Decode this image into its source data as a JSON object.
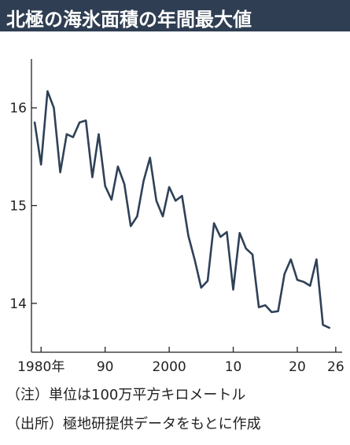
{
  "title": "北極の海氷面積の年間最大値",
  "chart_data": {
    "type": "line",
    "title": "北極の海氷面積の年間最大値",
    "xlabel": "",
    "ylabel": "",
    "x_tick_labels": [
      "1980年",
      "90",
      "2000",
      "10",
      "20",
      "26"
    ],
    "x_ticks": [
      1980,
      1990,
      2000,
      2010,
      2020,
      2026
    ],
    "y_ticks": [
      14,
      15,
      16
    ],
    "xlim": [
      1978.5,
      2027
    ],
    "ylim": [
      13.5,
      16.5
    ],
    "color": "#2f4157",
    "series": [
      {
        "name": "",
        "x": [
          1979,
          1980,
          1981,
          1982,
          1983,
          1984,
          1985,
          1986,
          1987,
          1988,
          1989,
          1990,
          1991,
          1992,
          1993,
          1994,
          1995,
          1996,
          1997,
          1998,
          1999,
          2000,
          2001,
          2002,
          2003,
          2004,
          2005,
          2006,
          2007,
          2008,
          2009,
          2010,
          2011,
          2012,
          2013,
          2014,
          2015,
          2016,
          2017,
          2018,
          2019,
          2020,
          2021,
          2022,
          2023,
          2024,
          2025
        ],
        "values": [
          15.85,
          15.42,
          16.17,
          16.0,
          15.34,
          15.73,
          15.7,
          15.85,
          15.87,
          15.29,
          15.73,
          15.2,
          15.06,
          15.4,
          15.22,
          14.79,
          14.89,
          15.25,
          15.49,
          15.05,
          14.89,
          15.19,
          15.05,
          15.1,
          14.69,
          14.44,
          14.16,
          14.23,
          14.82,
          14.68,
          14.73,
          14.14,
          14.72,
          14.56,
          14.5,
          13.96,
          13.98,
          13.91,
          13.92,
          14.3,
          14.45,
          14.24,
          14.22,
          14.18,
          14.45,
          13.78,
          13.75
        ]
      }
    ]
  },
  "notes": {
    "unit": "（注）単位は100万平方キロメートル",
    "source": "（出所）極地研提供データをもとに作成"
  }
}
